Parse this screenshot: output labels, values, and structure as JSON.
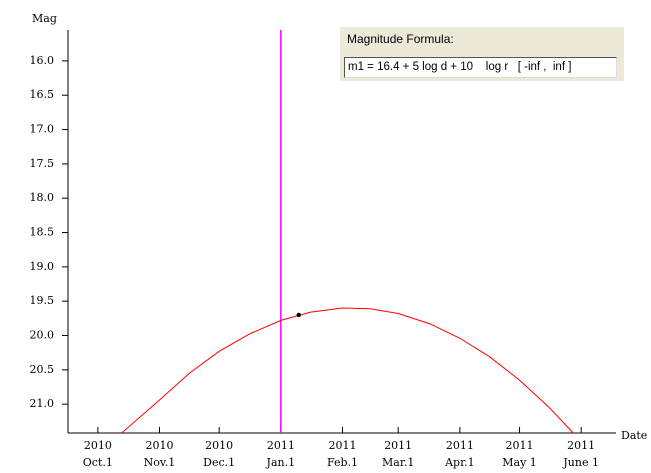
{
  "chart_data": {
    "type": "line",
    "xlabel": "Date",
    "ylabel": "Mag",
    "xlim": [
      "2010-09-16",
      "2011-06-18"
    ],
    "xticks": [
      {
        "value": "2010-10-01",
        "label": "2010\nOct.1"
      },
      {
        "value": "2010-11-01",
        "label": "2010\nNov.1"
      },
      {
        "value": "2010-12-01",
        "label": "2010\nDec.1"
      },
      {
        "value": "2011-01-01",
        "label": "2011\nJan.1"
      },
      {
        "value": "2011-02-01",
        "label": "2011\nFeb.1"
      },
      {
        "value": "2011-03-01",
        "label": "2011\nMar.1"
      },
      {
        "value": "2011-04-01",
        "label": "2011\nApr.1"
      },
      {
        "value": "2011-05-01",
        "label": "2011\nMay 1"
      },
      {
        "value": "2011-06-01",
        "label": "2011\nJune 1"
      }
    ],
    "ylim": [
      21.42,
      15.55
    ],
    "yticks": [
      {
        "value": 16,
        "label": "16.0"
      },
      16.5,
      {
        "value": 17,
        "label": "17.0"
      },
      17.5,
      {
        "value": 18,
        "label": "18.0"
      },
      18.5,
      {
        "value": 19,
        "label": "19.0"
      },
      19.5,
      {
        "value": 20,
        "label": "20.0"
      },
      20.5,
      {
        "value": 21,
        "label": "21.0"
      }
    ],
    "series": [
      {
        "color": "#ff0000",
        "x": [
          "2010-10-13",
          "2010-11-01",
          "2010-11-16",
          "2010-12-01",
          "2010-12-16",
          "2011-01-01",
          "2011-01-16",
          "2011-02-01",
          "2011-02-15",
          "2011-03-01",
          "2011-03-17",
          "2011-04-01",
          "2011-04-16",
          "2011-05-01",
          "2011-05-16",
          "2011-05-28"
        ],
        "values": [
          21.42,
          20.94,
          20.55,
          20.23,
          19.98,
          19.78,
          19.66,
          19.6,
          19.61,
          19.68,
          19.83,
          20.04,
          20.31,
          20.65,
          21.05,
          21.42
        ]
      }
    ],
    "point": {
      "x": "2011-01-10",
      "y": 19.7,
      "color": "#000000"
    },
    "marker": {
      "x": "2011-01-01",
      "color": "#ff00ff"
    }
  },
  "panel": {
    "title": "Magnitude Formula:",
    "formula": "m1 = 16.4 + 5 log d + 10    log r   [ -inf ,  inf ]"
  }
}
